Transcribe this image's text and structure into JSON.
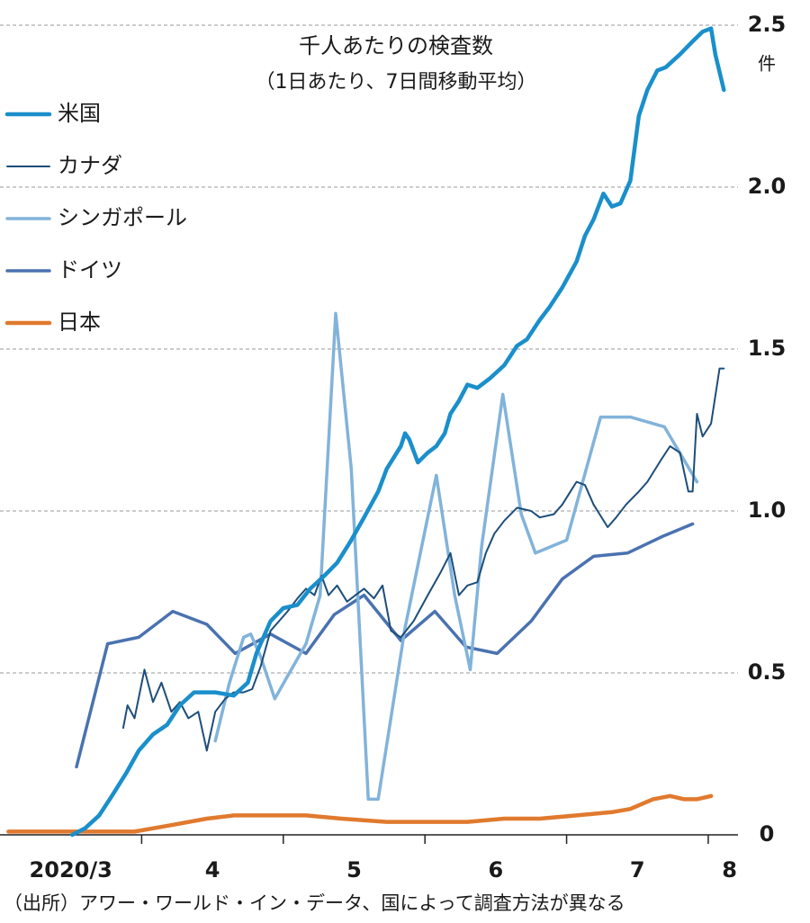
{
  "chart_data": {
    "type": "line",
    "title": "千人あたりの検査数",
    "subtitle": "（1日あたり、7日間移動平均）",
    "y_unit": "件",
    "source": "（出所）アワー・ワールド・イン・データ、国によって調査方法が異なる",
    "xlim": [
      3,
      8.21
    ],
    "xticks": [
      {
        "value": 3.5,
        "label": "2020/3"
      },
      {
        "value": 4.5,
        "label": "4"
      },
      {
        "value": 5.5,
        "label": "5"
      },
      {
        "value": 6.5,
        "label": "6"
      },
      {
        "value": 7.5,
        "label": "7"
      },
      {
        "value": 8.15,
        "label": "8"
      }
    ],
    "ylim": [
      0,
      2.5
    ],
    "yticks": [
      0,
      0.5,
      {
        "value": 1,
        "label": "1.0"
      },
      1.5,
      {
        "value": 2,
        "label": "2.0"
      },
      2.5
    ],
    "grid": true,
    "legend": "top-left",
    "series": [
      {
        "name": "米国",
        "color": "#1a8fcb",
        "linewidth": 4.5,
        "x": [
          3.51,
          3.6,
          3.7,
          3.79,
          3.89,
          3.98,
          4.08,
          4.18,
          4.27,
          4.37,
          4.43,
          4.52,
          4.65,
          4.75,
          4.81,
          4.91,
          5.0,
          5.1,
          5.19,
          5.29,
          5.38,
          5.48,
          5.57,
          5.67,
          5.73,
          5.83,
          5.86,
          5.89,
          5.95,
          6.02,
          6.08,
          6.14,
          6.18,
          6.24,
          6.3,
          6.37,
          6.46,
          6.56,
          6.65,
          6.72,
          6.81,
          6.88,
          6.97,
          7.07,
          7.13,
          7.19,
          7.26,
          7.32,
          7.38,
          7.45,
          7.51,
          7.57,
          7.64,
          7.7,
          7.8,
          7.89,
          7.96,
          8.02,
          8.05,
          8.11
        ],
        "values": [
          0,
          0.02,
          0.06,
          0.12,
          0.19,
          0.26,
          0.31,
          0.34,
          0.4,
          0.44,
          0.44,
          0.44,
          0.43,
          0.47,
          0.56,
          0.66,
          0.7,
          0.71,
          0.76,
          0.8,
          0.84,
          0.91,
          0.98,
          1.06,
          1.13,
          1.2,
          1.24,
          1.22,
          1.15,
          1.18,
          1.2,
          1.24,
          1.3,
          1.34,
          1.39,
          1.38,
          1.41,
          1.45,
          1.51,
          1.53,
          1.59,
          1.63,
          1.69,
          1.77,
          1.85,
          1.9,
          1.98,
          1.94,
          1.95,
          2.02,
          2.22,
          2.3,
          2.36,
          2.37,
          2.41,
          2.45,
          2.48,
          2.49,
          2.41,
          2.3
        ]
      },
      {
        "name": "カナダ",
        "color": "#1d4e7a",
        "linewidth": 2,
        "x": [
          3.87,
          3.9,
          3.95,
          4.02,
          4.08,
          4.14,
          4.21,
          4.27,
          4.33,
          4.4,
          4.46,
          4.52,
          4.59,
          4.65,
          4.72,
          4.78,
          4.84,
          4.91,
          4.97,
          5.03,
          5.1,
          5.16,
          5.22,
          5.27,
          5.32,
          5.38,
          5.45,
          5.51,
          5.57,
          5.64,
          5.7,
          5.76,
          5.83,
          5.92,
          6.02,
          6.11,
          6.18,
          6.24,
          6.3,
          6.37,
          6.43,
          6.49,
          6.56,
          6.65,
          6.75,
          6.81,
          6.91,
          6.97,
          7.07,
          7.13,
          7.19,
          7.29,
          7.35,
          7.42,
          7.51,
          7.57,
          7.67,
          7.73,
          7.8,
          7.86,
          7.89,
          7.92,
          7.96,
          8.02,
          8.08,
          8.11
        ],
        "values": [
          0.33,
          0.4,
          0.36,
          0.51,
          0.41,
          0.47,
          0.38,
          0.41,
          0.36,
          0.38,
          0.26,
          0.38,
          0.42,
          0.44,
          0.44,
          0.45,
          0.52,
          0.63,
          0.66,
          0.69,
          0.73,
          0.76,
          0.74,
          0.8,
          0.74,
          0.77,
          0.72,
          0.74,
          0.76,
          0.73,
          0.77,
          0.63,
          0.61,
          0.66,
          0.74,
          0.81,
          0.87,
          0.74,
          0.77,
          0.78,
          0.87,
          0.93,
          0.97,
          1.01,
          1.0,
          0.98,
          0.99,
          1.02,
          1.09,
          1.08,
          1.02,
          0.95,
          0.98,
          1.02,
          1.06,
          1.09,
          1.16,
          1.2,
          1.18,
          1.06,
          1.06,
          1.3,
          1.23,
          1.27,
          1.44,
          1.44
        ]
      },
      {
        "name": "シンガポール",
        "color": "#82b3da",
        "linewidth": 3.5,
        "x": [
          4.52,
          4.62,
          4.72,
          4.77,
          4.84,
          4.94,
          5.03,
          5.16,
          5.26,
          5.37,
          5.48,
          5.6,
          5.67,
          5.86,
          6.08,
          6.21,
          6.32,
          6.4,
          6.55,
          6.68,
          6.78,
          7.0,
          7.24,
          7.45,
          7.69,
          7.92
        ],
        "values": [
          0.29,
          0.47,
          0.61,
          0.62,
          0.55,
          0.42,
          0.49,
          0.59,
          0.74,
          1.61,
          1.13,
          0.11,
          0.11,
          0.64,
          1.11,
          0.74,
          0.51,
          0.89,
          1.36,
          0.99,
          0.87,
          0.91,
          1.29,
          1.29,
          1.26,
          1.09
        ]
      },
      {
        "name": "ドイツ",
        "color": "#4a72b0",
        "linewidth": 3.5,
        "x": [
          3.54,
          3.76,
          3.98,
          4.22,
          4.46,
          4.66,
          4.91,
          5.16,
          5.36,
          5.57,
          5.83,
          6.07,
          6.29,
          6.51,
          6.75,
          6.97,
          7.19,
          7.43,
          7.67,
          7.89
        ],
        "values": [
          0.21,
          0.59,
          0.61,
          0.69,
          0.65,
          0.56,
          0.62,
          0.56,
          0.68,
          0.74,
          0.6,
          0.69,
          0.58,
          0.56,
          0.66,
          0.79,
          0.86,
          0.87,
          0.92,
          0.96
        ]
      },
      {
        "name": "日本",
        "color": "#e07a2e",
        "linewidth": 4.5,
        "x": [
          3.06,
          3.95,
          4.21,
          4.46,
          4.65,
          4.91,
          5.16,
          5.41,
          5.73,
          6.05,
          6.3,
          6.56,
          6.81,
          7.07,
          7.32,
          7.45,
          7.61,
          7.73,
          7.83,
          7.92,
          8.02
        ],
        "values": [
          0.01,
          0.01,
          0.03,
          0.05,
          0.06,
          0.06,
          0.06,
          0.05,
          0.04,
          0.04,
          0.04,
          0.05,
          0.05,
          0.06,
          0.07,
          0.08,
          0.11,
          0.12,
          0.11,
          0.11,
          0.12
        ]
      }
    ]
  }
}
